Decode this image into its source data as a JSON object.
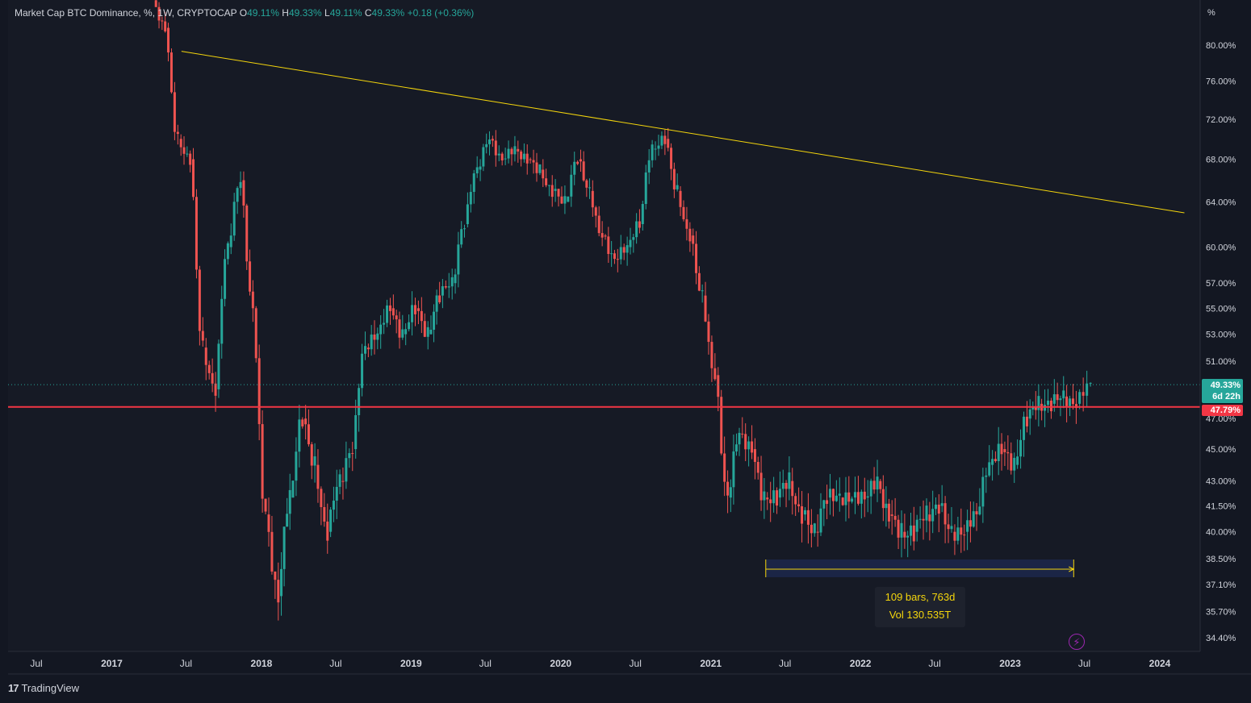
{
  "legend": {
    "title": "Market Cap BTC Dominance, %, 1W, CRYPTOCAP",
    "o_label": "O",
    "o_value": "49.11%",
    "h_label": "H",
    "h_value": "49.33%",
    "l_label": "L",
    "l_value": "49.11%",
    "c_label": "C",
    "c_value": "49.33%",
    "change": "+0.18 (+0.36%)"
  },
  "price_tag": {
    "value": "49.33%",
    "countdown": "6d 22h"
  },
  "line_tag": {
    "value": "47.79%"
  },
  "measure": {
    "line1": "109 bars, 763d",
    "line2": "Vol 130.535T"
  },
  "footer": {
    "brand": "TradingView"
  },
  "colors": {
    "up": "#26a69a",
    "down": "#ef5350",
    "trendline": "#f5d60c",
    "horizontal": "#f23645",
    "bg": "#161a25"
  },
  "chart_data": {
    "type": "candlestick",
    "title": "Market Cap BTC Dominance, %, 1W, CRYPTOCAP",
    "y_unit": "%",
    "y_scale": "log",
    "y_ticks": [
      "80.00%",
      "76.00%",
      "72.00%",
      "68.00%",
      "64.00%",
      "60.00%",
      "57.00%",
      "55.00%",
      "53.00%",
      "51.00%",
      "47.00%",
      "45.00%",
      "43.00%",
      "41.50%",
      "40.00%",
      "38.50%",
      "37.10%",
      "35.70%",
      "34.40%"
    ],
    "y_tick_values": [
      80,
      76,
      72,
      68,
      64,
      60,
      57,
      55,
      53,
      51,
      47,
      45,
      43,
      41.5,
      40,
      38.5,
      37.1,
      35.7,
      34.4
    ],
    "x_ticks": [
      "Jul",
      "2017",
      "Jul",
      "2018",
      "Jul",
      "2019",
      "Jul",
      "2020",
      "Jul",
      "2021",
      "Jul",
      "2022",
      "Jul",
      "2023",
      "Jul",
      "2024"
    ],
    "x_tick_dates": [
      "2016-07-01",
      "2017-01-01",
      "2017-07-01",
      "2018-01-01",
      "2018-07-01",
      "2019-01-01",
      "2019-07-01",
      "2020-01-01",
      "2020-07-01",
      "2021-01-01",
      "2021-07-01",
      "2022-01-01",
      "2022-07-01",
      "2023-01-01",
      "2023-07-01",
      "2024-01-01"
    ],
    "series": [
      {
        "x": [
          "2017-04-15",
          "2017-05-15",
          "2017-06-15",
          "2017-07-15",
          "2017-08-15",
          "2017-09-15",
          "2017-10-15",
          "2017-11-15",
          "2017-12-15",
          "2018-01-15",
          "2018-02-15",
          "2018-03-15",
          "2018-04-15",
          "2018-05-15",
          "2018-06-15",
          "2018-07-15",
          "2018-08-15",
          "2018-09-15",
          "2018-10-15",
          "2018-11-15",
          "2018-12-15",
          "2019-01-15",
          "2019-02-15",
          "2019-03-15",
          "2019-04-15",
          "2019-05-15",
          "2019-06-15",
          "2019-07-15",
          "2019-08-15",
          "2019-09-15",
          "2019-10-15",
          "2019-11-15",
          "2019-12-15",
          "2020-01-15",
          "2020-02-15",
          "2020-03-15",
          "2020-04-15",
          "2020-05-15",
          "2020-06-15",
          "2020-07-15",
          "2020-08-15",
          "2020-09-15",
          "2020-10-15",
          "2020-11-15",
          "2020-12-15",
          "2021-01-15",
          "2021-02-15",
          "2021-03-15",
          "2021-04-15",
          "2021-05-15",
          "2021-06-15",
          "2021-07-15",
          "2021-08-15",
          "2021-09-15",
          "2021-10-15",
          "2021-11-15",
          "2021-12-15",
          "2022-01-15",
          "2022-02-15",
          "2022-03-15",
          "2022-04-15",
          "2022-05-15",
          "2022-06-15",
          "2022-07-15",
          "2022-08-15",
          "2022-09-15",
          "2022-10-15",
          "2022-11-15",
          "2022-12-15",
          "2023-01-15",
          "2023-02-15",
          "2023-03-15",
          "2023-04-15",
          "2023-05-15",
          "2023-06-15"
        ],
        "close": [
          82,
          70,
          68,
          52,
          49,
          60,
          66,
          55,
          41,
          36.5,
          42,
          47,
          44,
          40,
          43,
          45,
          52,
          53,
          55,
          53,
          55,
          53,
          56,
          57,
          62,
          67,
          70,
          68,
          69,
          68,
          67,
          65,
          64,
          68,
          65,
          61,
          59,
          60,
          62,
          69,
          70,
          65,
          61,
          56,
          50,
          42,
          46,
          45,
          42,
          42,
          43,
          41,
          40,
          42,
          42,
          42,
          42,
          43,
          41,
          40,
          40,
          41,
          41.5,
          40,
          40,
          41,
          44,
          45,
          44,
          47,
          48,
          48,
          48.5,
          48,
          49.33
        ],
        "name": ""
      }
    ],
    "annotations": {
      "trendline": {
        "from": [
          "2017-06-20",
          79.3
        ],
        "to": [
          "2024-03-01",
          63.0
        ]
      },
      "horizontal_level": 47.79,
      "last_price": 49.33,
      "date_range": {
        "from": "2021-05-15",
        "to": "2023-06-05",
        "bars": 109,
        "days": 763,
        "volume": "130.535T"
      }
    }
  }
}
